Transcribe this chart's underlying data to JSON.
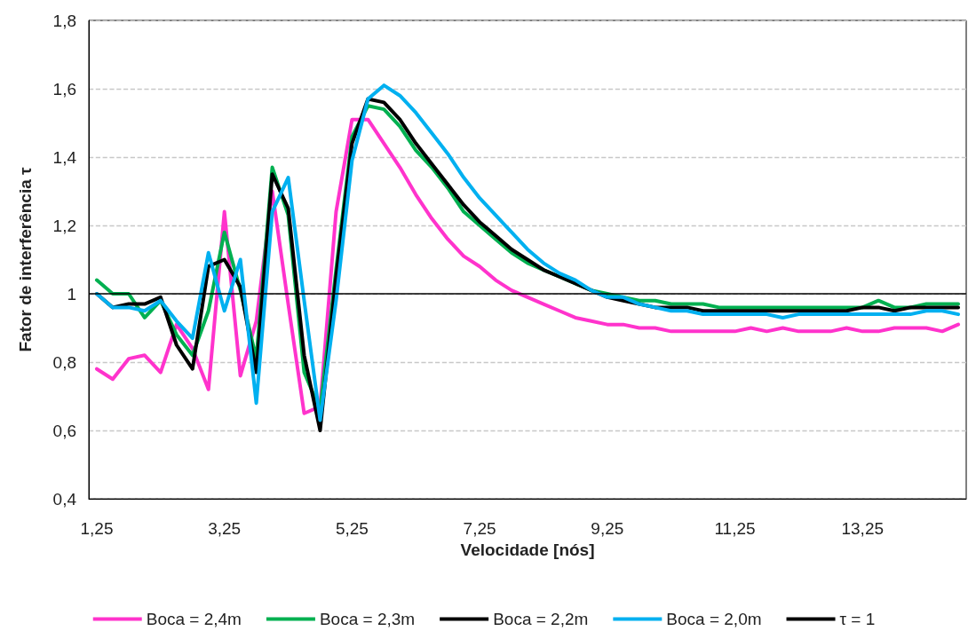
{
  "chart_data": {
    "type": "line",
    "xlabel": "Velocidade [nós]",
    "ylabel": "Fator de interferência τ",
    "categories": [
      "1,25",
      null,
      null,
      null,
      null,
      null,
      null,
      null,
      "3,25",
      null,
      null,
      null,
      null,
      null,
      null,
      null,
      "5,25",
      null,
      null,
      null,
      null,
      null,
      null,
      null,
      "7,25",
      null,
      null,
      null,
      null,
      null,
      null,
      null,
      "9,25",
      null,
      null,
      null,
      null,
      null,
      null,
      null,
      "11,25",
      null,
      null,
      null,
      null,
      null,
      null,
      null,
      "13,25",
      null,
      null,
      null,
      null,
      null,
      null
    ],
    "series": [
      {
        "name": "Boca = 2,4m",
        "color": "#ff33cc",
        "values": [
          0.78,
          0.75,
          0.81,
          0.82,
          0.77,
          0.91,
          0.84,
          0.72,
          1.24,
          0.76,
          0.92,
          1.3,
          0.97,
          0.65,
          0.67,
          1.24,
          1.51,
          1.51,
          1.44,
          1.37,
          1.29,
          1.22,
          1.16,
          1.11,
          1.08,
          1.04,
          1.01,
          0.99,
          0.97,
          0.95,
          0.93,
          0.92,
          0.91,
          0.91,
          0.9,
          0.9,
          0.89,
          0.89,
          0.89,
          0.89,
          0.89,
          0.9,
          0.89,
          0.9,
          0.89,
          0.89,
          0.89,
          0.9,
          0.89,
          0.89,
          0.9,
          0.9,
          0.9,
          0.89,
          0.91
        ]
      },
      {
        "name": "Boca = 2,3m",
        "color": "#00b050",
        "values": [
          1.04,
          1.0,
          1.0,
          0.93,
          0.98,
          0.88,
          0.82,
          0.95,
          1.18,
          1.01,
          0.81,
          1.37,
          1.23,
          0.77,
          0.66,
          1.07,
          1.46,
          1.55,
          1.54,
          1.49,
          1.42,
          1.37,
          1.31,
          1.24,
          1.2,
          1.16,
          1.12,
          1.09,
          1.07,
          1.05,
          1.03,
          1.01,
          1.0,
          0.99,
          0.98,
          0.98,
          0.97,
          0.97,
          0.97,
          0.96,
          0.96,
          0.96,
          0.96,
          0.96,
          0.96,
          0.96,
          0.96,
          0.96,
          0.96,
          0.98,
          0.96,
          0.96,
          0.97,
          0.97,
          0.97
        ]
      },
      {
        "name": "Boca = 2,2m",
        "color": "#000000",
        "values": [
          1.0,
          0.96,
          0.97,
          0.97,
          0.99,
          0.85,
          0.78,
          1.08,
          1.1,
          1.02,
          0.77,
          1.35,
          1.25,
          0.82,
          0.6,
          1.05,
          1.44,
          1.57,
          1.56,
          1.51,
          1.44,
          1.38,
          1.32,
          1.26,
          1.21,
          1.17,
          1.13,
          1.1,
          1.07,
          1.05,
          1.03,
          1.01,
          0.99,
          0.98,
          0.97,
          0.96,
          0.96,
          0.96,
          0.95,
          0.95,
          0.95,
          0.95,
          0.95,
          0.95,
          0.95,
          0.95,
          0.95,
          0.95,
          0.96,
          0.96,
          0.95,
          0.96,
          0.96,
          0.96,
          0.96
        ]
      },
      {
        "name": "Boca = 2,0m",
        "color": "#00b0f0",
        "values": [
          1.0,
          0.96,
          0.96,
          0.95,
          0.98,
          0.92,
          0.87,
          1.12,
          0.95,
          1.1,
          0.68,
          1.24,
          1.34,
          0.98,
          0.63,
          0.98,
          1.39,
          1.57,
          1.61,
          1.58,
          1.53,
          1.47,
          1.41,
          1.34,
          1.28,
          1.23,
          1.18,
          1.13,
          1.09,
          1.06,
          1.04,
          1.01,
          0.99,
          0.99,
          0.97,
          0.96,
          0.95,
          0.95,
          0.94,
          0.94,
          0.94,
          0.94,
          0.94,
          0.93,
          0.94,
          0.94,
          0.94,
          0.94,
          0.94,
          0.94,
          0.94,
          0.94,
          0.95,
          0.95,
          0.94
        ]
      }
    ],
    "ylim": [
      0.4,
      1.8
    ],
    "yticks": [
      {
        "value": 0.4,
        "label": "0,4"
      },
      {
        "value": 0.6,
        "label": "0,6"
      },
      {
        "value": 0.8,
        "label": "0,8"
      },
      1,
      {
        "value": 1.2,
        "label": "1,2"
      },
      {
        "value": 1.4,
        "label": "1,4"
      },
      {
        "value": 1.6,
        "label": "1,6"
      },
      {
        "value": 1.8,
        "label": "1,8"
      }
    ],
    "ref_lines": [
      {
        "axis": "y",
        "value": 1,
        "label": "τ = 1",
        "color": "#000000"
      }
    ],
    "grid": "y",
    "legend": "bottom",
    "marker": "none",
    "line_style": "solid"
  }
}
